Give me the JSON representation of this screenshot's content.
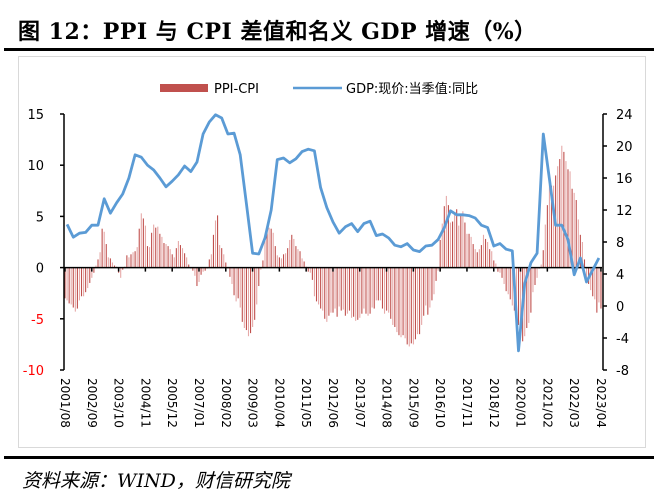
{
  "figure": {
    "title": "图 12：PPI 与 CPI 差值和名义 GDP 增速（%）",
    "source": "资料来源：WIND，财信研究院"
  },
  "colors": {
    "bar": "#c0504d",
    "bar_light": "#e6a9a8",
    "line": "#5b9bd5",
    "negative_tick": "#ff0000"
  },
  "chart_data": {
    "type": "bar+line",
    "title": "PPI 与 CPI 差值和名义 GDP 增速（%）",
    "legend": [
      "PPI-CPI",
      "GDP:现价:当季值:同比"
    ],
    "legend_position": "top",
    "left_axis": {
      "ylim": [
        -10,
        15
      ],
      "ticks": [
        15,
        10,
        5,
        0,
        -5,
        -10
      ]
    },
    "right_axis": {
      "ylim": [
        -8,
        24
      ],
      "ticks": [
        24,
        20,
        16,
        12,
        8,
        4,
        0,
        -4,
        -8
      ]
    },
    "x_tick_labels": [
      "2001/08",
      "2002/09",
      "2003/10",
      "2004/11",
      "2005/12",
      "2007/01",
      "2008/02",
      "2009/03",
      "2010/04",
      "2011/05",
      "2012/06",
      "2013/07",
      "2014/08",
      "2015/09",
      "2016/10",
      "2017/11",
      "2018/12",
      "2020/01",
      "2021/02",
      "2022/03",
      "2023/04"
    ],
    "grid": false,
    "series": [
      {
        "name": "PPI-CPI",
        "axis": "left",
        "type": "bar",
        "start": "2001/08",
        "frequency": "monthly",
        "values": [
          -3.0,
          -3.2,
          -3.5,
          -3.6,
          -3.9,
          -4.3,
          -4.0,
          -3.2,
          -2.8,
          -2.8,
          -2.4,
          -2.0,
          -1.5,
          -1.0,
          -0.5,
          0.2,
          0.8,
          1.5,
          3.8,
          3.5,
          2.3,
          1.0,
          0.9,
          0.5,
          0.2,
          0.1,
          -0.5,
          -1.0,
          -0.2,
          0.1,
          1.2,
          1.0,
          1.3,
          1.5,
          1.6,
          2.0,
          3.8,
          5.3,
          4.8,
          4.1,
          2.1,
          2.0,
          3.4,
          4.2,
          3.9,
          4.0,
          3.3,
          3.0,
          2.4,
          2.3,
          2.1,
          1.8,
          1.3,
          1.0,
          1.9,
          2.6,
          2.2,
          1.9,
          1.4,
          1.0,
          0.3,
          -0.1,
          -0.3,
          -0.8,
          -1.8,
          -1.4,
          -0.7,
          -0.4,
          -0.3,
          -0.1,
          0.8,
          1.3,
          3.2,
          4.6,
          5.1,
          2.2,
          1.9,
          1.3,
          0.5,
          -0.1,
          -0.9,
          -1.6,
          -2.7,
          -3.3,
          -3.0,
          -3.9,
          -5.3,
          -5.9,
          -6.1,
          -6.7,
          -6.4,
          -5.8,
          -5.1,
          -3.6,
          -1.8,
          -0.2,
          0.7,
          2.6,
          3.5,
          3.9,
          3.8,
          3.4,
          2.1,
          1.2,
          1.0,
          0.9,
          1.3,
          1.4,
          1.9,
          2.7,
          3.2,
          2.8,
          2.1,
          1.8,
          1.6,
          0.9,
          0.6,
          0.1,
          -0.4,
          -0.5,
          -1.2,
          -2.8,
          -3.3,
          -3.6,
          -4.0,
          -4.2,
          -5.0,
          -5.3,
          -4.7,
          -4.4,
          -4.4,
          -4.0,
          -4.8,
          -3.8,
          -4.2,
          -4.1,
          -4.7,
          -4.5,
          -4.2,
          -4.9,
          -4.8,
          -5.2,
          -5.1,
          -4.9,
          -4.5,
          -4.0,
          -4.5,
          -4.7,
          -4.5,
          -3.9,
          -4.0,
          -3.2,
          -3.2,
          -3.2,
          -4.0,
          -4.5,
          -4.2,
          -4.4,
          -5.0,
          -5.6,
          -5.8,
          -6.3,
          -6.6,
          -6.8,
          -6.6,
          -6.9,
          -7.5,
          -7.7,
          -7.4,
          -7.5,
          -7.0,
          -6.5,
          -6.5,
          -5.6,
          -4.7,
          -3.7,
          -4.6,
          -3.9,
          -3.2,
          -2.6,
          -1.3,
          -0.3,
          2.7,
          4.3,
          6.0,
          7.0,
          6.1,
          4.4,
          4.5,
          5.3,
          5.7,
          4.1,
          5.2,
          5.5,
          4.4,
          3.3,
          3.3,
          3.0,
          2.3,
          1.8,
          1.5,
          1.8,
          2.2,
          3.2,
          2.8,
          2.5,
          1.8,
          1.6,
          0.7,
          0.4,
          -0.4,
          -0.5,
          -1.0,
          -1.6,
          -2.3,
          -2.6,
          -3.1,
          -3.7,
          -4.2,
          -5.1,
          -5.6,
          -6.2,
          -7.2,
          -6.7,
          -5.9,
          -5.4,
          -4.4,
          -2.4,
          -1.7,
          -1.0,
          -0.1,
          0.3,
          1.7,
          4.2,
          6.1,
          8.1,
          8.0,
          8.0,
          9.0,
          9.9,
          10.6,
          11.9,
          11.3,
          10.4,
          9.6,
          9.4,
          7.7,
          7.3,
          6.6,
          4.7,
          3.2,
          2.5,
          0.8,
          -1.2,
          -1.6,
          -2.2,
          -2.8,
          -3.1,
          -4.4,
          -3.4,
          -4.0
        ]
      },
      {
        "name": "GDP:现价:当季值:同比",
        "axis": "right",
        "type": "line",
        "start": "2001Q3",
        "frequency": "quarterly",
        "values": [
          10.2,
          8.6,
          9.1,
          9.2,
          10.1,
          10.1,
          13.4,
          11.6,
          12.9,
          14.0,
          16.0,
          18.9,
          18.6,
          17.6,
          17.0,
          16.0,
          14.9,
          15.6,
          16.4,
          17.5,
          16.8,
          18.0,
          21.5,
          23.0,
          23.9,
          23.5,
          21.5,
          21.6,
          18.9,
          12.8,
          6.6,
          6.5,
          8.5,
          12.0,
          18.3,
          18.5,
          17.9,
          18.4,
          19.3,
          19.6,
          19.4,
          14.8,
          12.3,
          10.5,
          9.1,
          9.9,
          10.3,
          9.3,
          10.3,
          10.6,
          8.8,
          9.0,
          8.5,
          7.6,
          7.4,
          7.8,
          7.0,
          6.8,
          7.5,
          7.6,
          8.3,
          9.8,
          11.9,
          11.4,
          11.4,
          11.3,
          11.0,
          10.1,
          9.8,
          7.5,
          7.8,
          7.1,
          6.9,
          -5.6,
          2.8,
          5.4,
          6.6,
          21.5,
          15.9,
          10.1,
          10.1,
          8.3,
          3.9,
          6.0,
          3.0,
          4.5,
          6.0
        ]
      }
    ]
  }
}
